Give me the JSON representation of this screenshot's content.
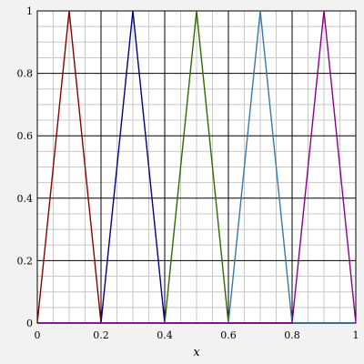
{
  "chart_data": {
    "type": "line",
    "title": "",
    "xlabel": "x",
    "ylabel": "",
    "xlim": [
      0,
      1
    ],
    "ylim": [
      0,
      1
    ],
    "grid": true,
    "legend": "none",
    "x_ticks": [
      0,
      0.2,
      0.4,
      0.6,
      0.8,
      1
    ],
    "y_ticks": [
      0,
      0.2,
      0.4,
      0.6,
      0.8,
      1
    ],
    "x_tick_labels": [
      "0",
      "0.2",
      "0.4",
      "0.6",
      "0.8",
      "1"
    ],
    "y_tick_labels": [
      "0",
      "0.2",
      "0.4",
      "0.6",
      "0.8",
      "1"
    ],
    "series": [
      {
        "color": "#8b0000",
        "x": [
          0,
          0.1,
          0.2,
          1
        ],
        "y": [
          0,
          1,
          0,
          0
        ]
      },
      {
        "color": "#00008b",
        "x": [
          0,
          0.2,
          0.3,
          0.4,
          1
        ],
        "y": [
          0,
          0,
          1,
          0,
          0
        ]
      },
      {
        "color": "#2e6b00",
        "x": [
          0,
          0.4,
          0.5,
          0.6,
          1
        ],
        "y": [
          0,
          0,
          1,
          0,
          0
        ]
      },
      {
        "color": "#3a78a8",
        "x": [
          0,
          0.6,
          0.7,
          0.8,
          1
        ],
        "y": [
          0,
          0,
          1,
          0,
          0
        ]
      },
      {
        "color": "#8b008b",
        "x": [
          0,
          0.8,
          0.9,
          1
        ],
        "y": [
          0,
          0,
          1,
          0
        ]
      }
    ]
  }
}
